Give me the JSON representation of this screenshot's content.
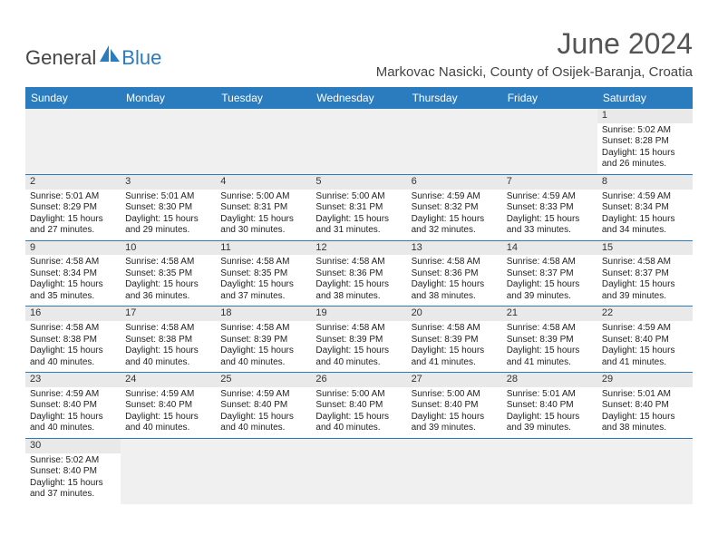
{
  "logo": {
    "general": "General",
    "blue": "Blue"
  },
  "title": "June 2024",
  "location": "Markovac Nasicki, County of Osijek-Baranja, Croatia",
  "colors": {
    "header_bg": "#2b7bbf",
    "header_text": "#ffffff",
    "daynum_bg": "#e9e9e9",
    "empty_bg": "#f0f0f0",
    "border": "#2b7bbf",
    "text": "#333333"
  },
  "dayNames": [
    "Sunday",
    "Monday",
    "Tuesday",
    "Wednesday",
    "Thursday",
    "Friday",
    "Saturday"
  ],
  "weeks": [
    [
      null,
      null,
      null,
      null,
      null,
      null,
      {
        "n": "1",
        "sr": "5:02 AM",
        "ss": "8:28 PM",
        "dl": "15 hours and 26 minutes."
      }
    ],
    [
      {
        "n": "2",
        "sr": "5:01 AM",
        "ss": "8:29 PM",
        "dl": "15 hours and 27 minutes."
      },
      {
        "n": "3",
        "sr": "5:01 AM",
        "ss": "8:30 PM",
        "dl": "15 hours and 29 minutes."
      },
      {
        "n": "4",
        "sr": "5:00 AM",
        "ss": "8:31 PM",
        "dl": "15 hours and 30 minutes."
      },
      {
        "n": "5",
        "sr": "5:00 AM",
        "ss": "8:31 PM",
        "dl": "15 hours and 31 minutes."
      },
      {
        "n": "6",
        "sr": "4:59 AM",
        "ss": "8:32 PM",
        "dl": "15 hours and 32 minutes."
      },
      {
        "n": "7",
        "sr": "4:59 AM",
        "ss": "8:33 PM",
        "dl": "15 hours and 33 minutes."
      },
      {
        "n": "8",
        "sr": "4:59 AM",
        "ss": "8:34 PM",
        "dl": "15 hours and 34 minutes."
      }
    ],
    [
      {
        "n": "9",
        "sr": "4:58 AM",
        "ss": "8:34 PM",
        "dl": "15 hours and 35 minutes."
      },
      {
        "n": "10",
        "sr": "4:58 AM",
        "ss": "8:35 PM",
        "dl": "15 hours and 36 minutes."
      },
      {
        "n": "11",
        "sr": "4:58 AM",
        "ss": "8:35 PM",
        "dl": "15 hours and 37 minutes."
      },
      {
        "n": "12",
        "sr": "4:58 AM",
        "ss": "8:36 PM",
        "dl": "15 hours and 38 minutes."
      },
      {
        "n": "13",
        "sr": "4:58 AM",
        "ss": "8:36 PM",
        "dl": "15 hours and 38 minutes."
      },
      {
        "n": "14",
        "sr": "4:58 AM",
        "ss": "8:37 PM",
        "dl": "15 hours and 39 minutes."
      },
      {
        "n": "15",
        "sr": "4:58 AM",
        "ss": "8:37 PM",
        "dl": "15 hours and 39 minutes."
      }
    ],
    [
      {
        "n": "16",
        "sr": "4:58 AM",
        "ss": "8:38 PM",
        "dl": "15 hours and 40 minutes."
      },
      {
        "n": "17",
        "sr": "4:58 AM",
        "ss": "8:38 PM",
        "dl": "15 hours and 40 minutes."
      },
      {
        "n": "18",
        "sr": "4:58 AM",
        "ss": "8:39 PM",
        "dl": "15 hours and 40 minutes."
      },
      {
        "n": "19",
        "sr": "4:58 AM",
        "ss": "8:39 PM",
        "dl": "15 hours and 40 minutes."
      },
      {
        "n": "20",
        "sr": "4:58 AM",
        "ss": "8:39 PM",
        "dl": "15 hours and 41 minutes."
      },
      {
        "n": "21",
        "sr": "4:58 AM",
        "ss": "8:39 PM",
        "dl": "15 hours and 41 minutes."
      },
      {
        "n": "22",
        "sr": "4:59 AM",
        "ss": "8:40 PM",
        "dl": "15 hours and 41 minutes."
      }
    ],
    [
      {
        "n": "23",
        "sr": "4:59 AM",
        "ss": "8:40 PM",
        "dl": "15 hours and 40 minutes."
      },
      {
        "n": "24",
        "sr": "4:59 AM",
        "ss": "8:40 PM",
        "dl": "15 hours and 40 minutes."
      },
      {
        "n": "25",
        "sr": "4:59 AM",
        "ss": "8:40 PM",
        "dl": "15 hours and 40 minutes."
      },
      {
        "n": "26",
        "sr": "5:00 AM",
        "ss": "8:40 PM",
        "dl": "15 hours and 40 minutes."
      },
      {
        "n": "27",
        "sr": "5:00 AM",
        "ss": "8:40 PM",
        "dl": "15 hours and 39 minutes."
      },
      {
        "n": "28",
        "sr": "5:01 AM",
        "ss": "8:40 PM",
        "dl": "15 hours and 39 minutes."
      },
      {
        "n": "29",
        "sr": "5:01 AM",
        "ss": "8:40 PM",
        "dl": "15 hours and 38 minutes."
      }
    ],
    [
      {
        "n": "30",
        "sr": "5:02 AM",
        "ss": "8:40 PM",
        "dl": "15 hours and 37 minutes."
      },
      null,
      null,
      null,
      null,
      null,
      null
    ]
  ],
  "labels": {
    "sunrise": "Sunrise:",
    "sunset": "Sunset:",
    "daylight": "Daylight:"
  }
}
